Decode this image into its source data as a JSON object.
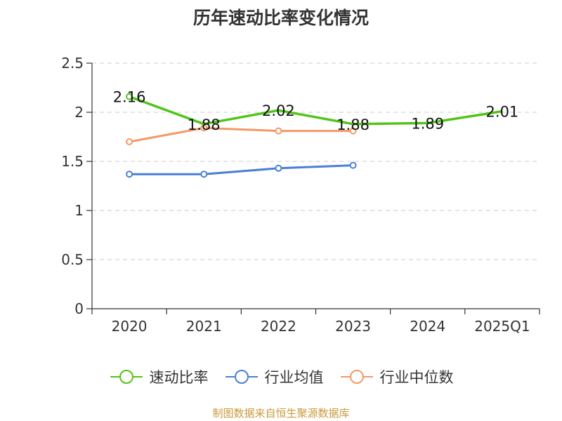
{
  "chart_data": {
    "type": "line",
    "title": "历年速动比率变化情况",
    "categories": [
      "2020",
      "2021",
      "2022",
      "2023",
      "2024",
      "2025Q1"
    ],
    "ylim": [
      0,
      2.5
    ],
    "yticks": [
      "0",
      "0.5",
      "1",
      "1.5",
      "2",
      "2.5"
    ],
    "grid": true,
    "legend_position": "bottom",
    "series": [
      {
        "name": "速动比率",
        "color": "#52c41a",
        "values": [
          2.16,
          1.88,
          2.02,
          1.88,
          1.89,
          2.01
        ],
        "labels": [
          "2.16",
          "1.88",
          "2.02",
          "1.88",
          "1.89",
          "2.01"
        ]
      },
      {
        "name": "行业均值",
        "color": "#4a7fd6",
        "values": [
          1.37,
          1.37,
          1.43,
          1.46,
          null,
          null
        ]
      },
      {
        "name": "行业中位数",
        "color": "#f59866",
        "values": [
          1.7,
          1.84,
          1.81,
          1.81,
          null,
          null
        ]
      }
    ]
  },
  "footer": {
    "source": "制图数据来自恒生聚源数据库"
  }
}
